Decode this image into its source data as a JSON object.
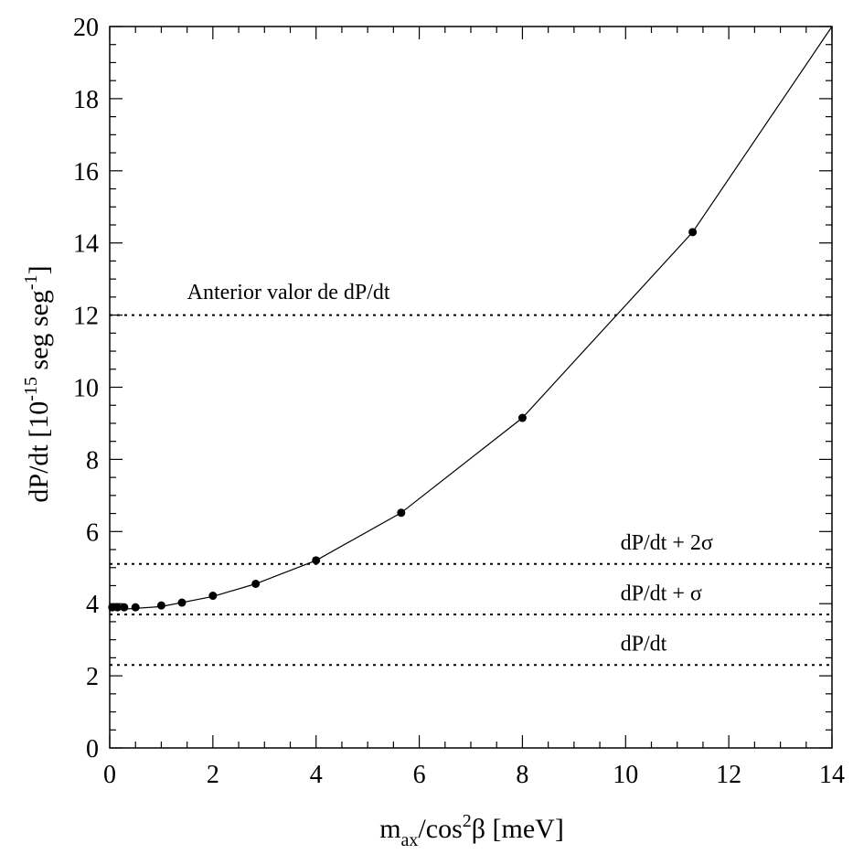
{
  "chart_data": {
    "type": "scatter",
    "xlabel": {
      "base": "m",
      "sub": "ax",
      "mid": "/cos",
      "sup": "2",
      "tail": "β [meV]"
    },
    "ylabel": {
      "pre": "dP/dt  [10",
      "sup1": "-15",
      "mid": " seg seg",
      "sup2": "-1",
      "post": "]"
    },
    "xlim": [
      0,
      14
    ],
    "ylim": [
      0,
      20
    ],
    "x_ticks": [
      {
        "value": 0,
        "label": "0"
      },
      {
        "value": 2,
        "label": "2"
      },
      {
        "value": 4,
        "label": "4"
      },
      {
        "value": 6,
        "label": "6"
      },
      {
        "value": 8,
        "label": "8"
      },
      {
        "value": 10,
        "label": "10"
      },
      {
        "value": 12,
        "label": "12"
      },
      {
        "value": 14,
        "label": "14"
      }
    ],
    "y_ticks": [
      {
        "value": 0,
        "label": "0"
      },
      {
        "value": 2,
        "label": "2"
      },
      {
        "value": 4,
        "label": "4"
      },
      {
        "value": 6,
        "label": "6"
      },
      {
        "value": 8,
        "label": "8"
      },
      {
        "value": 10,
        "label": "10"
      },
      {
        "value": 12,
        "label": "12"
      },
      {
        "value": 14,
        "label": "14"
      },
      {
        "value": 16,
        "label": "16"
      },
      {
        "value": 18,
        "label": "18"
      },
      {
        "value": 20,
        "label": "20"
      }
    ],
    "series": [
      {
        "points": [
          {
            "x": 0.05,
            "y": 3.9
          },
          {
            "x": 0.15,
            "y": 3.9
          },
          {
            "x": 0.28,
            "y": 3.9
          },
          {
            "x": 0.5,
            "y": 3.9
          },
          {
            "x": 1.0,
            "y": 3.95
          },
          {
            "x": 1.4,
            "y": 4.03
          },
          {
            "x": 2.0,
            "y": 4.22
          },
          {
            "x": 2.83,
            "y": 4.55
          },
          {
            "x": 4.0,
            "y": 5.2
          },
          {
            "x": 5.65,
            "y": 6.52
          },
          {
            "x": 8.0,
            "y": 9.15
          },
          {
            "x": 11.3,
            "y": 14.3
          }
        ],
        "curve": [
          {
            "x": 0.0,
            "y": 3.82
          },
          {
            "x": 1.0,
            "y": 3.92
          },
          {
            "x": 2.0,
            "y": 4.2
          },
          {
            "x": 2.83,
            "y": 4.55
          },
          {
            "x": 4.0,
            "y": 5.2
          },
          {
            "x": 5.65,
            "y": 6.52
          },
          {
            "x": 8.0,
            "y": 9.15
          },
          {
            "x": 11.3,
            "y": 14.3
          },
          {
            "x": 14.0,
            "y": 20.0
          }
        ]
      }
    ],
    "reference_lines": [
      {
        "y": 12.0,
        "label": "Anterior valor de dP/dt",
        "label_x": 1.5,
        "label_y": 12.45
      },
      {
        "y": 5.1,
        "label": "dP/dt + 2σ",
        "label_x": 9.9,
        "label_y": 5.5
      },
      {
        "y": 3.7,
        "label": "dP/dt + σ",
        "label_x": 9.9,
        "label_y": 4.1
      },
      {
        "y": 2.3,
        "label": "dP/dt",
        "label_x": 9.9,
        "label_y": 2.7
      }
    ],
    "grid": false
  }
}
